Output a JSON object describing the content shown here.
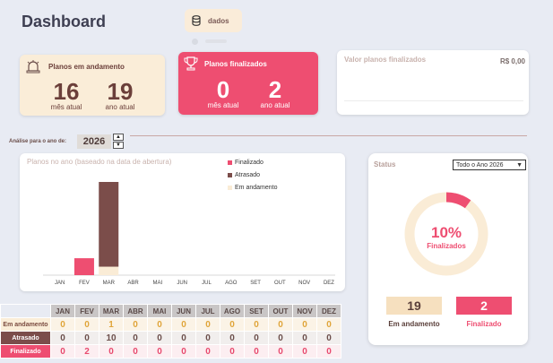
{
  "header": {
    "title": "Dashboard",
    "data_button_label": "dados"
  },
  "cards": {
    "em_andamento": {
      "title": "Planos em andamento",
      "mes_value": "16",
      "mes_label": "mês atual",
      "ano_value": "19",
      "ano_label": "ano atual"
    },
    "finalizados": {
      "title": "Planos finalizados",
      "mes_value": "0",
      "mes_label": "mês atual",
      "ano_value": "2",
      "ano_label": "ano atual"
    },
    "valor": {
      "title": "Valor planos finalizados",
      "value": "R$ 0,00"
    }
  },
  "filter": {
    "label": "Análise para o ano de:",
    "year": "2026",
    "up": "▲",
    "down": "▼"
  },
  "chart_data": {
    "type": "bar",
    "stacked": true,
    "title": "Planos no ano (baseado na data de abertura)",
    "categories": [
      "JAN",
      "FEV",
      "MAR",
      "ABR",
      "MAI",
      "JUN",
      "JUL",
      "AGO",
      "SET",
      "OUT",
      "NOV",
      "DEZ"
    ],
    "series": [
      {
        "name": "Finalizado",
        "color": "#ee4e71",
        "values": [
          0,
          2,
          0,
          0,
          0,
          0,
          0,
          0,
          0,
          0,
          0,
          0
        ]
      },
      {
        "name": "Atrasado",
        "color": "#7b4d4a",
        "values": [
          0,
          0,
          10,
          0,
          0,
          0,
          0,
          0,
          0,
          0,
          0,
          0
        ]
      },
      {
        "name": "Em andamento",
        "color": "#faecd6",
        "values": [
          0,
          0,
          1,
          0,
          0,
          0,
          0,
          0,
          0,
          0,
          0,
          0
        ]
      }
    ],
    "legend_position": "top-right"
  },
  "table": {
    "months": [
      "JAN",
      "FEV",
      "MAR",
      "ABR",
      "MAI",
      "JUN",
      "JUL",
      "AGO",
      "SET",
      "OUT",
      "NOV",
      "DEZ"
    ],
    "rows": [
      {
        "label": "Em andamento",
        "values": [
          0,
          0,
          1,
          0,
          0,
          0,
          0,
          0,
          0,
          0,
          0,
          0
        ]
      },
      {
        "label": "Atrasado",
        "values": [
          0,
          0,
          10,
          0,
          0,
          0,
          0,
          0,
          0,
          0,
          0,
          0
        ]
      },
      {
        "label": "Finalizado",
        "values": [
          0,
          2,
          0,
          0,
          0,
          0,
          0,
          0,
          0,
          0,
          0,
          0
        ]
      }
    ]
  },
  "status": {
    "title": "Status",
    "dropdown_value": "Todo o Ano 2026",
    "percent": 10,
    "percent_label": "10%",
    "center_label": "Finalizados",
    "em_andamento_value": "19",
    "em_andamento_label": "Em andamento",
    "finalizado_value": "2",
    "finalizado_label": "Finalizado"
  },
  "colors": {
    "pink": "#ee4e71",
    "cream": "#faedd8",
    "brown": "#7b4d4a"
  }
}
